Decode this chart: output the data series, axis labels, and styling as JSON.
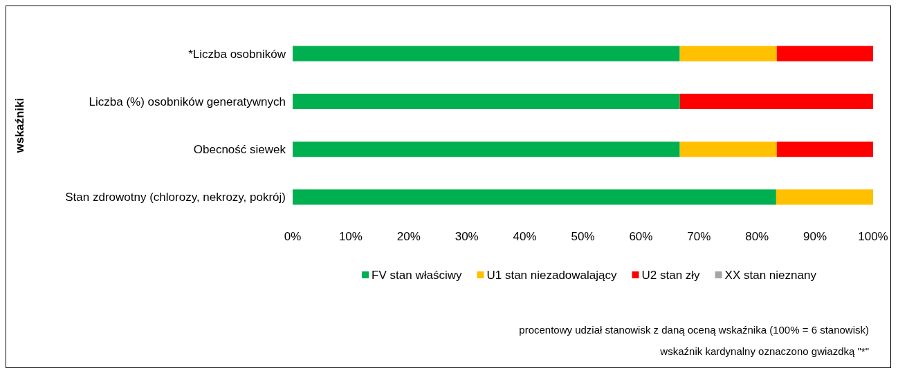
{
  "chart_data": {
    "type": "bar",
    "orientation": "horizontal",
    "stacked": true,
    "ylabel": "wskaźniki",
    "categories": [
      "*Liczba osobników",
      "Liczba (%) osobników generatywnych",
      "Obecność siewek",
      "Stan zdrowotny (chlorozy, nekrozy, pokrój)"
    ],
    "series": [
      {
        "name": "FV stan właściwy",
        "color": "#00b050",
        "values": [
          66.7,
          66.7,
          66.7,
          83.3
        ]
      },
      {
        "name": "U1 stan niezadowalający",
        "color": "#ffc000",
        "values": [
          16.7,
          0,
          16.7,
          16.7
        ]
      },
      {
        "name": "U2 stan zły",
        "color": "#ff0000",
        "values": [
          16.6,
          33.3,
          16.6,
          0
        ]
      },
      {
        "name": "XX stan nieznany",
        "color": "#a5a5a5",
        "values": [
          0,
          0,
          0,
          0
        ]
      }
    ],
    "xlim": [
      0,
      100
    ],
    "xticks": [
      {
        "value": 0,
        "label": "0%"
      },
      {
        "value": 10,
        "label": "10%"
      },
      {
        "value": 20,
        "label": "20%"
      },
      {
        "value": 30,
        "label": "30%"
      },
      {
        "value": 40,
        "label": "40%"
      },
      {
        "value": 50,
        "label": "50%"
      },
      {
        "value": 60,
        "label": "60%"
      },
      {
        "value": 70,
        "label": "70%"
      },
      {
        "value": 80,
        "label": "80%"
      },
      {
        "value": 90,
        "label": "90%"
      },
      {
        "value": 100,
        "label": "100%"
      }
    ],
    "grid": false,
    "legend": "bottom",
    "annotations": [
      "procentowy udział stanowisk z daną oceną wskaźnika (100% = 6 stanowisk)",
      "wskaźnik kardynalny oznaczono gwiazdką \"*\""
    ]
  }
}
